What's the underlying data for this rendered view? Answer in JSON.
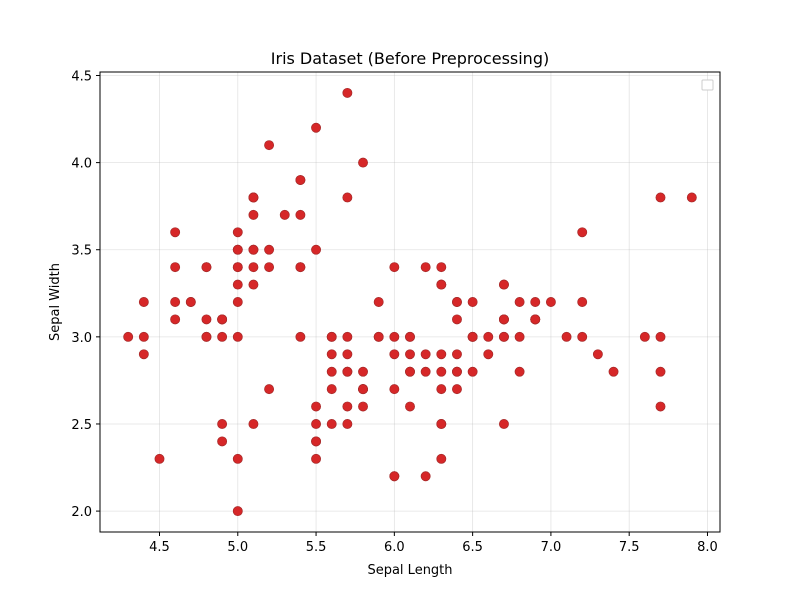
{
  "chart_data": {
    "type": "scatter",
    "title": "Iris Dataset (Before Preprocessing)",
    "xlabel": "Sepal Length",
    "ylabel": "Sepal Width",
    "xlim": [
      4.12,
      8.08
    ],
    "ylim": [
      1.88,
      4.52
    ],
    "xticks": [
      4.5,
      5.0,
      5.5,
      6.0,
      6.5,
      7.0,
      7.5,
      8.0
    ],
    "yticks": [
      2.0,
      2.5,
      3.0,
      3.5,
      4.0,
      4.5
    ],
    "xtick_labels": [
      "4.5",
      "5.0",
      "5.5",
      "6.0",
      "6.5",
      "7.0",
      "7.5",
      "8.0"
    ],
    "ytick_labels": [
      "2.0",
      "2.5",
      "3.0",
      "3.5",
      "4.0",
      "4.5"
    ],
    "grid": true,
    "legend": "top-right (empty)",
    "marker_color": "#d62728",
    "marker_edge_color": "#a52a2a",
    "points": [
      [
        5.1,
        3.5
      ],
      [
        4.9,
        3.0
      ],
      [
        4.7,
        3.2
      ],
      [
        4.6,
        3.1
      ],
      [
        5.0,
        3.6
      ],
      [
        5.4,
        3.9
      ],
      [
        4.6,
        3.4
      ],
      [
        5.0,
        3.4
      ],
      [
        4.4,
        2.9
      ],
      [
        4.9,
        3.1
      ],
      [
        5.4,
        3.7
      ],
      [
        4.8,
        3.4
      ],
      [
        4.8,
        3.0
      ],
      [
        4.3,
        3.0
      ],
      [
        5.8,
        4.0
      ],
      [
        5.7,
        4.4
      ],
      [
        5.4,
        3.9
      ],
      [
        5.1,
        3.5
      ],
      [
        5.7,
        3.8
      ],
      [
        5.1,
        3.8
      ],
      [
        5.4,
        3.4
      ],
      [
        5.1,
        3.7
      ],
      [
        4.6,
        3.6
      ],
      [
        5.1,
        3.3
      ],
      [
        4.8,
        3.4
      ],
      [
        5.0,
        3.0
      ],
      [
        5.0,
        3.4
      ],
      [
        5.2,
        3.5
      ],
      [
        5.2,
        3.4
      ],
      [
        4.7,
        3.2
      ],
      [
        4.8,
        3.1
      ],
      [
        5.4,
        3.4
      ],
      [
        5.2,
        4.1
      ],
      [
        5.5,
        4.2
      ],
      [
        4.9,
        3.1
      ],
      [
        5.0,
        3.2
      ],
      [
        5.5,
        3.5
      ],
      [
        4.9,
        3.1
      ],
      [
        4.4,
        3.0
      ],
      [
        5.1,
        3.4
      ],
      [
        5.0,
        3.5
      ],
      [
        4.5,
        2.3
      ],
      [
        4.4,
        3.2
      ],
      [
        5.0,
        3.5
      ],
      [
        5.1,
        3.8
      ],
      [
        4.8,
        3.0
      ],
      [
        5.1,
        3.8
      ],
      [
        4.6,
        3.2
      ],
      [
        5.3,
        3.7
      ],
      [
        5.0,
        3.3
      ],
      [
        7.0,
        3.2
      ],
      [
        6.4,
        3.2
      ],
      [
        6.9,
        3.1
      ],
      [
        5.5,
        2.3
      ],
      [
        6.5,
        2.8
      ],
      [
        5.7,
        2.8
      ],
      [
        6.3,
        3.3
      ],
      [
        4.9,
        2.4
      ],
      [
        6.6,
        2.9
      ],
      [
        5.2,
        2.7
      ],
      [
        5.0,
        2.0
      ],
      [
        5.9,
        3.0
      ],
      [
        6.0,
        2.2
      ],
      [
        6.1,
        2.9
      ],
      [
        5.6,
        2.9
      ],
      [
        6.7,
        3.1
      ],
      [
        5.6,
        3.0
      ],
      [
        5.8,
        2.7
      ],
      [
        6.2,
        2.2
      ],
      [
        5.6,
        2.5
      ],
      [
        5.9,
        3.2
      ],
      [
        6.1,
        2.8
      ],
      [
        6.3,
        2.5
      ],
      [
        6.1,
        2.8
      ],
      [
        6.4,
        2.9
      ],
      [
        6.6,
        3.0
      ],
      [
        6.8,
        2.8
      ],
      [
        6.7,
        3.0
      ],
      [
        6.0,
        2.9
      ],
      [
        5.7,
        2.6
      ],
      [
        5.5,
        2.4
      ],
      [
        5.5,
        2.4
      ],
      [
        5.8,
        2.7
      ],
      [
        6.0,
        2.7
      ],
      [
        5.4,
        3.0
      ],
      [
        6.0,
        3.4
      ],
      [
        6.7,
        3.1
      ],
      [
        6.3,
        2.3
      ],
      [
        5.6,
        3.0
      ],
      [
        5.5,
        2.5
      ],
      [
        5.5,
        2.6
      ],
      [
        6.1,
        3.0
      ],
      [
        5.8,
        2.6
      ],
      [
        5.0,
        2.3
      ],
      [
        5.6,
        2.7
      ],
      [
        5.7,
        3.0
      ],
      [
        5.7,
        2.9
      ],
      [
        6.2,
        2.9
      ],
      [
        5.1,
        2.5
      ],
      [
        5.7,
        2.8
      ],
      [
        6.3,
        3.3
      ],
      [
        5.8,
        2.7
      ],
      [
        7.1,
        3.0
      ],
      [
        6.3,
        2.9
      ],
      [
        6.5,
        3.0
      ],
      [
        7.6,
        3.0
      ],
      [
        4.9,
        2.5
      ],
      [
        7.3,
        2.9
      ],
      [
        6.7,
        2.5
      ],
      [
        7.2,
        3.6
      ],
      [
        6.5,
        3.2
      ],
      [
        6.4,
        2.7
      ],
      [
        6.8,
        3.0
      ],
      [
        5.7,
        2.5
      ],
      [
        5.8,
        2.8
      ],
      [
        6.4,
        3.2
      ],
      [
        6.5,
        3.0
      ],
      [
        7.7,
        3.8
      ],
      [
        7.7,
        2.6
      ],
      [
        6.0,
        2.2
      ],
      [
        6.9,
        3.2
      ],
      [
        5.6,
        2.8
      ],
      [
        7.7,
        2.8
      ],
      [
        6.3,
        2.7
      ],
      [
        6.7,
        3.3
      ],
      [
        7.2,
        3.2
      ],
      [
        6.2,
        2.8
      ],
      [
        6.1,
        3.0
      ],
      [
        6.4,
        2.8
      ],
      [
        7.2,
        3.0
      ],
      [
        7.4,
        2.8
      ],
      [
        7.9,
        3.8
      ],
      [
        6.4,
        2.8
      ],
      [
        6.3,
        2.8
      ],
      [
        6.1,
        2.6
      ],
      [
        7.7,
        3.0
      ],
      [
        6.3,
        3.4
      ],
      [
        6.4,
        3.1
      ],
      [
        6.0,
        3.0
      ],
      [
        6.9,
        3.1
      ],
      [
        6.7,
        3.1
      ],
      [
        6.9,
        3.1
      ],
      [
        5.8,
        2.7
      ],
      [
        6.8,
        3.2
      ],
      [
        6.7,
        3.3
      ],
      [
        6.7,
        3.0
      ],
      [
        6.3,
        2.5
      ],
      [
        6.5,
        3.0
      ],
      [
        6.2,
        3.4
      ],
      [
        5.9,
        3.0
      ]
    ]
  }
}
